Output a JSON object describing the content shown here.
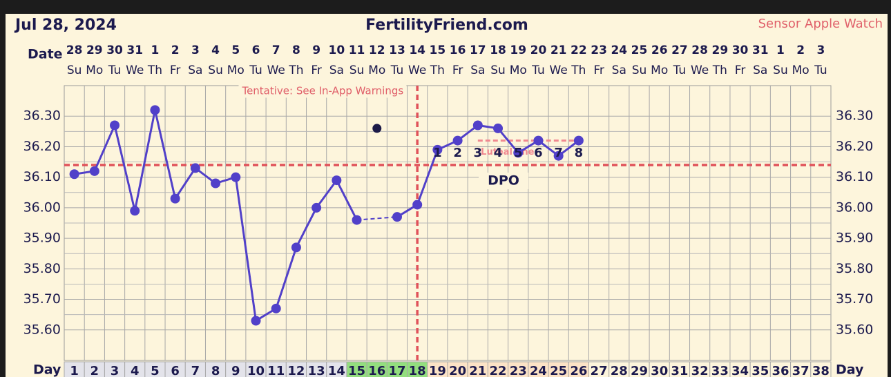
{
  "chart_data": {
    "type": "line",
    "title": "Jul 28, 2024",
    "site": "FertilityFriend.com",
    "source": "Sensor Apple Watch",
    "date_label": "Date",
    "day_label": "Day",
    "note": "Tentative: See In-App Warnings",
    "x": [
      1,
      2,
      3,
      4,
      5,
      6,
      7,
      8,
      9,
      10,
      11,
      12,
      13,
      14,
      15,
      16,
      17,
      18,
      19,
      20,
      21,
      22,
      23,
      24,
      25,
      26,
      27,
      28,
      29,
      30,
      31,
      32,
      33,
      34,
      35,
      36,
      37,
      38
    ],
    "date_labels": [
      "28",
      "29",
      "30",
      "31",
      "1",
      "2",
      "3",
      "4",
      "5",
      "6",
      "7",
      "8",
      "9",
      "10",
      "11",
      "12",
      "13",
      "14",
      "15",
      "16",
      "17",
      "18",
      "19",
      "20",
      "21",
      "22",
      "23",
      "24",
      "25",
      "26",
      "27",
      "28",
      "29",
      "30",
      "31",
      "1",
      "2",
      "3"
    ],
    "weekday_labels": [
      "Su",
      "Mo",
      "Tu",
      "We",
      "Th",
      "Fr",
      "Sa",
      "Su",
      "Mo",
      "Tu",
      "We",
      "Th",
      "Fr",
      "Sa",
      "Su",
      "Mo",
      "Tu",
      "We",
      "Th",
      "Fr",
      "Sa",
      "Su",
      "Mo",
      "Tu",
      "We",
      "Th",
      "Fr",
      "Sa",
      "Su",
      "Mo",
      "Tu",
      "We",
      "Th",
      "Fr",
      "Sa",
      "Su",
      "Mo",
      "Tu"
    ],
    "day_fills": [
      "#e3e3ea",
      "#e3e3ea",
      "#e3e3ea",
      "#e3e3ea",
      "#e3e3ea",
      "#e3e3ea",
      "#e3e3ea",
      "#e3e3ea",
      "#e3e3ea",
      "#e3e3ea",
      "#e3e3ea",
      "#e3e3ea",
      "#e3e3ea",
      "#e3e3ea",
      "#93de7e",
      "#93de7e",
      "#93de7e",
      "#93de7e",
      "#fce3c6",
      "#fce3c6",
      "#fce3c6",
      "#fce3c6",
      "#fce3c6",
      "#fce3c6",
      "#fce3c6",
      "#fce3c6",
      "#fdf5dc",
      "#fdf5dc",
      "#fdf5dc",
      "#fdf5dc",
      "#fdf5dc",
      "#fdf5dc",
      "#fdf5dc",
      "#fdf5dc",
      "#fdf5dc",
      "#fdf5dc",
      "#fdf5dc",
      "#fdf5dc"
    ],
    "series": [
      {
        "color": "#5140c9",
        "values": [
          36.11,
          36.12,
          36.27,
          35.99,
          36.32,
          36.03,
          36.13,
          36.08,
          36.1,
          35.63,
          35.67,
          35.87,
          36.0,
          36.09,
          35.96,
          null,
          35.97,
          36.01,
          36.19,
          36.22,
          36.27,
          36.26,
          36.18,
          36.22,
          36.17,
          36.22,
          null,
          null,
          null,
          null,
          null,
          null,
          null,
          null,
          null,
          null,
          null,
          null
        ]
      },
      {
        "color": "#1c1a48",
        "values": [
          null,
          null,
          null,
          null,
          null,
          null,
          null,
          null,
          null,
          null,
          null,
          null,
          null,
          null,
          null,
          36.26,
          null,
          null,
          null,
          null,
          null,
          null,
          null,
          null,
          null,
          null,
          null,
          null,
          null,
          null,
          null,
          null,
          null,
          null,
          null,
          null,
          null,
          null
        ]
      }
    ],
    "xlim": [
      0.5,
      38.5
    ],
    "ylim": [
      35.5,
      36.4
    ],
    "yticks": [
      {
        "value": 35.6,
        "label": "35.60"
      },
      {
        "value": 35.7,
        "label": "35.70"
      },
      {
        "value": 35.8,
        "label": "35.80"
      },
      {
        "value": 35.9,
        "label": "35.90"
      },
      {
        "value": 36.0,
        "label": "36.00"
      },
      {
        "value": 36.1,
        "label": "36.10"
      },
      {
        "value": 36.2,
        "label": "36.20"
      },
      {
        "value": 36.3,
        "label": "36.30"
      }
    ],
    "grid": true,
    "coverline": 36.14,
    "ovulation_day": 18,
    "reference_color": "#e0525a",
    "luteal_line": {
      "label": "Luteal line",
      "value": 36.22,
      "start_day": 21,
      "end_day": 26,
      "color": "#f08890"
    },
    "dpo": {
      "label": "DPO",
      "days": [
        19,
        20,
        21,
        22,
        23,
        24,
        25,
        26
      ],
      "labels": [
        1,
        2,
        3,
        4,
        5,
        6,
        7,
        8
      ]
    }
  }
}
